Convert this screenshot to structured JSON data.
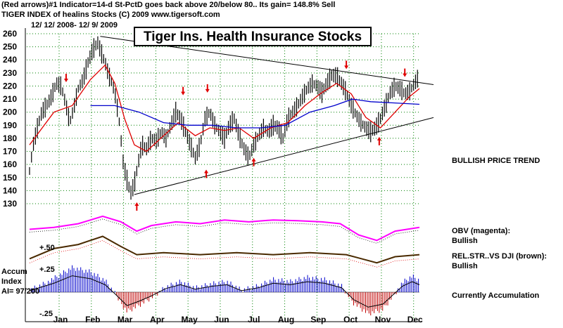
{
  "header": {
    "line1": "(Red arrows)#1 Indicator=14-d St-PctD goes back above 20/below 80.. Its gain= 148.8% Sell",
    "line2": "TIGER INDEX of healins Stocks  (C) 2009  www.tigersoft.com",
    "date_range": "12/ 12/ 2008- 12/ 9/ 2009"
  },
  "chart_title": "Tiger Ins. Health Insurance Stocks",
  "annotations": {
    "price_trend": "BULLISH PRICE TREND",
    "obv_label": "OBV (magenta):",
    "obv_status": "Bullish",
    "rs_label": "REL.STR..VS DJI (brown):",
    "rs_status": "Bullish",
    "accum_status": "Currently Accumulation",
    "accum_title1": "Accum",
    "accum_title2": "Index",
    "accum_ai": "AI= 97/200",
    "accum_plus50": "+.50",
    "accum_plus25": "+.25",
    "accum_minus25": "-.25"
  },
  "chart_data": {
    "type": "line",
    "title": "Tiger Ins. Health Insurance Stocks",
    "x_tick_labels": [
      "Jan",
      "Feb",
      "Mar",
      "Apr",
      "May",
      "Jun",
      "Jul",
      "Aug",
      "Sep",
      "Oct",
      "Nov",
      "Dec"
    ],
    "y_tick_labels": [
      "260",
      "250",
      "240",
      "230",
      "220",
      "210",
      "200",
      "190",
      "180",
      "170",
      "160",
      "150",
      "140",
      "130"
    ],
    "ylim": [
      130,
      260
    ],
    "grid": true,
    "price_series": [
      {
        "d": 0,
        "v": 155
      },
      {
        "d": 3,
        "v": 175
      },
      {
        "d": 7,
        "v": 190
      },
      {
        "d": 10,
        "v": 200
      },
      {
        "d": 14,
        "v": 205
      },
      {
        "d": 18,
        "v": 212
      },
      {
        "d": 22,
        "v": 222
      },
      {
        "d": 26,
        "v": 220
      },
      {
        "d": 30,
        "v": 205
      },
      {
        "d": 33,
        "v": 192
      },
      {
        "d": 36,
        "v": 202
      },
      {
        "d": 40,
        "v": 218
      },
      {
        "d": 44,
        "v": 225
      },
      {
        "d": 48,
        "v": 238
      },
      {
        "d": 52,
        "v": 248
      },
      {
        "d": 56,
        "v": 253
      },
      {
        "d": 59,
        "v": 245
      },
      {
        "d": 62,
        "v": 238
      },
      {
        "d": 65,
        "v": 228
      },
      {
        "d": 68,
        "v": 222
      },
      {
        "d": 71,
        "v": 210
      },
      {
        "d": 74,
        "v": 190
      },
      {
        "d": 77,
        "v": 160
      },
      {
        "d": 80,
        "v": 148
      },
      {
        "d": 83,
        "v": 138
      },
      {
        "d": 86,
        "v": 145
      },
      {
        "d": 89,
        "v": 160
      },
      {
        "d": 92,
        "v": 175
      },
      {
        "d": 96,
        "v": 172
      },
      {
        "d": 100,
        "v": 180
      },
      {
        "d": 104,
        "v": 178
      },
      {
        "d": 108,
        "v": 185
      },
      {
        "d": 112,
        "v": 180
      },
      {
        "d": 116,
        "v": 190
      },
      {
        "d": 120,
        "v": 200
      },
      {
        "d": 124,
        "v": 195
      },
      {
        "d": 128,
        "v": 185
      },
      {
        "d": 132,
        "v": 175
      },
      {
        "d": 136,
        "v": 165
      },
      {
        "d": 140,
        "v": 175
      },
      {
        "d": 144,
        "v": 195
      },
      {
        "d": 148,
        "v": 200
      },
      {
        "d": 152,
        "v": 190
      },
      {
        "d": 156,
        "v": 185
      },
      {
        "d": 160,
        "v": 180
      },
      {
        "d": 164,
        "v": 190
      },
      {
        "d": 168,
        "v": 195
      },
      {
        "d": 172,
        "v": 182
      },
      {
        "d": 176,
        "v": 172
      },
      {
        "d": 180,
        "v": 165
      },
      {
        "d": 184,
        "v": 175
      },
      {
        "d": 188,
        "v": 182
      },
      {
        "d": 192,
        "v": 188
      },
      {
        "d": 196,
        "v": 185
      },
      {
        "d": 200,
        "v": 190
      },
      {
        "d": 204,
        "v": 188
      },
      {
        "d": 208,
        "v": 180
      },
      {
        "d": 212,
        "v": 195
      },
      {
        "d": 216,
        "v": 200
      },
      {
        "d": 220,
        "v": 205
      },
      {
        "d": 224,
        "v": 212
      },
      {
        "d": 228,
        "v": 218
      },
      {
        "d": 232,
        "v": 222
      },
      {
        "d": 236,
        "v": 220
      },
      {
        "d": 240,
        "v": 215
      },
      {
        "d": 244,
        "v": 222
      },
      {
        "d": 248,
        "v": 228
      },
      {
        "d": 252,
        "v": 228
      },
      {
        "d": 256,
        "v": 222
      },
      {
        "d": 260,
        "v": 215
      },
      {
        "d": 264,
        "v": 205
      },
      {
        "d": 268,
        "v": 198
      },
      {
        "d": 272,
        "v": 192
      },
      {
        "d": 276,
        "v": 188
      },
      {
        "d": 280,
        "v": 185
      },
      {
        "d": 284,
        "v": 188
      },
      {
        "d": 288,
        "v": 195
      },
      {
        "d": 292,
        "v": 205
      },
      {
        "d": 296,
        "v": 215
      },
      {
        "d": 300,
        "v": 220
      },
      {
        "d": 304,
        "v": 218
      },
      {
        "d": 308,
        "v": 214
      },
      {
        "d": 312,
        "v": 216
      },
      {
        "d": 316,
        "v": 222
      },
      {
        "d": 320,
        "v": 228
      }
    ],
    "ma_short": [
      {
        "d": 0,
        "v": 175
      },
      {
        "d": 20,
        "v": 200
      },
      {
        "d": 35,
        "v": 205
      },
      {
        "d": 50,
        "v": 225
      },
      {
        "d": 62,
        "v": 236
      },
      {
        "d": 70,
        "v": 222
      },
      {
        "d": 78,
        "v": 195
      },
      {
        "d": 86,
        "v": 175
      },
      {
        "d": 96,
        "v": 170
      },
      {
        "d": 110,
        "v": 182
      },
      {
        "d": 122,
        "v": 192
      },
      {
        "d": 136,
        "v": 182
      },
      {
        "d": 148,
        "v": 188
      },
      {
        "d": 160,
        "v": 186
      },
      {
        "d": 172,
        "v": 188
      },
      {
        "d": 184,
        "v": 180
      },
      {
        "d": 198,
        "v": 188
      },
      {
        "d": 212,
        "v": 192
      },
      {
        "d": 226,
        "v": 205
      },
      {
        "d": 240,
        "v": 215
      },
      {
        "d": 252,
        "v": 222
      },
      {
        "d": 264,
        "v": 214
      },
      {
        "d": 276,
        "v": 196
      },
      {
        "d": 288,
        "v": 188
      },
      {
        "d": 300,
        "v": 200
      },
      {
        "d": 312,
        "v": 212
      },
      {
        "d": 320,
        "v": 218
      }
    ],
    "ma_long": [
      {
        "d": 50,
        "v": 205
      },
      {
        "d": 70,
        "v": 205
      },
      {
        "d": 90,
        "v": 200
      },
      {
        "d": 110,
        "v": 192
      },
      {
        "d": 130,
        "v": 190
      },
      {
        "d": 150,
        "v": 190
      },
      {
        "d": 170,
        "v": 188
      },
      {
        "d": 190,
        "v": 188
      },
      {
        "d": 210,
        "v": 190
      },
      {
        "d": 230,
        "v": 200
      },
      {
        "d": 250,
        "v": 205
      },
      {
        "d": 265,
        "v": 210
      },
      {
        "d": 280,
        "v": 208
      },
      {
        "d": 300,
        "v": 207
      },
      {
        "d": 320,
        "v": 206
      }
    ],
    "resistance_line": [
      {
        "d": 58,
        "v": 258
      },
      {
        "d": 320,
        "v": 220
      }
    ],
    "support_line": [
      {
        "d": 86,
        "v": 137
      },
      {
        "d": 320,
        "v": 198
      }
    ],
    "sell_arrows_d": [
      30,
      126,
      146,
      260,
      308
    ],
    "sell_arrows_v": [
      224,
      214,
      216,
      234,
      228
    ],
    "buy_arrows_d": [
      88,
      145,
      184,
      287
    ],
    "buy_arrows_v": [
      130,
      155,
      164,
      180
    ],
    "obv": [
      {
        "d": 0,
        "v": 0.35
      },
      {
        "d": 20,
        "v": 0.4
      },
      {
        "d": 40,
        "v": 0.5
      },
      {
        "d": 60,
        "v": 0.7
      },
      {
        "d": 75,
        "v": 0.55
      },
      {
        "d": 88,
        "v": 0.3
      },
      {
        "d": 100,
        "v": 0.45
      },
      {
        "d": 120,
        "v": 0.55
      },
      {
        "d": 140,
        "v": 0.5
      },
      {
        "d": 160,
        "v": 0.6
      },
      {
        "d": 180,
        "v": 0.55
      },
      {
        "d": 200,
        "v": 0.6
      },
      {
        "d": 220,
        "v": 0.58
      },
      {
        "d": 240,
        "v": 0.55
      },
      {
        "d": 255,
        "v": 0.5
      },
      {
        "d": 270,
        "v": 0.2
      },
      {
        "d": 285,
        "v": 0.05
      },
      {
        "d": 300,
        "v": 0.3
      },
      {
        "d": 320,
        "v": 0.4
      }
    ],
    "rel_strength": [
      {
        "d": 0,
        "v": 0.2
      },
      {
        "d": 20,
        "v": 0.45
      },
      {
        "d": 40,
        "v": 0.55
      },
      {
        "d": 60,
        "v": 0.75
      },
      {
        "d": 75,
        "v": 0.5
      },
      {
        "d": 88,
        "v": 0.3
      },
      {
        "d": 110,
        "v": 0.35
      },
      {
        "d": 140,
        "v": 0.3
      },
      {
        "d": 170,
        "v": 0.35
      },
      {
        "d": 200,
        "v": 0.3
      },
      {
        "d": 230,
        "v": 0.35
      },
      {
        "d": 260,
        "v": 0.3
      },
      {
        "d": 285,
        "v": 0.1
      },
      {
        "d": 300,
        "v": 0.25
      },
      {
        "d": 320,
        "v": 0.3
      }
    ],
    "accum": [
      {
        "d": 0,
        "v": 0.02
      },
      {
        "d": 20,
        "v": 0.12
      },
      {
        "d": 35,
        "v": 0.22
      },
      {
        "d": 50,
        "v": 0.18
      },
      {
        "d": 62,
        "v": 0.1
      },
      {
        "d": 70,
        "v": -0.02
      },
      {
        "d": 80,
        "v": -0.18
      },
      {
        "d": 90,
        "v": -0.12
      },
      {
        "d": 100,
        "v": -0.05
      },
      {
        "d": 112,
        "v": 0.05
      },
      {
        "d": 124,
        "v": 0.1
      },
      {
        "d": 136,
        "v": 0.04
      },
      {
        "d": 150,
        "v": 0.08
      },
      {
        "d": 162,
        "v": 0.1
      },
      {
        "d": 174,
        "v": 0.02
      },
      {
        "d": 188,
        "v": 0.06
      },
      {
        "d": 200,
        "v": 0.12
      },
      {
        "d": 214,
        "v": 0.1
      },
      {
        "d": 228,
        "v": 0.14
      },
      {
        "d": 242,
        "v": 0.12
      },
      {
        "d": 256,
        "v": 0.06
      },
      {
        "d": 266,
        "v": -0.1
      },
      {
        "d": 278,
        "v": -0.2
      },
      {
        "d": 290,
        "v": -0.16
      },
      {
        "d": 298,
        "v": -0.04
      },
      {
        "d": 306,
        "v": 0.08
      },
      {
        "d": 314,
        "v": 0.14
      },
      {
        "d": 320,
        "v": 0.1
      }
    ]
  },
  "colors": {
    "price": "#000000",
    "ma_short": "#e00000",
    "ma_long": "#0000cc",
    "obv": "#ff00ff",
    "rel_strength": "#4a2a00",
    "accum_pos": "#0000cc",
    "accum_neg": "#c00000",
    "arrow": "#e00000",
    "grid": "#008000"
  }
}
